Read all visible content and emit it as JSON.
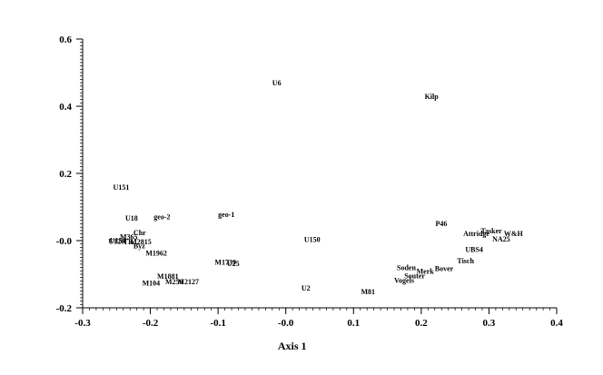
{
  "chart_data": {
    "type": "scatter",
    "title": "",
    "xlabel": "Axis 1",
    "ylabel": "",
    "xlim": [
      -0.3,
      0.4
    ],
    "ylim": [
      -0.2,
      0.6
    ],
    "x_ticks": [
      {
        "value": -0.3,
        "label": "-0.3"
      },
      {
        "value": -0.2,
        "label": "-0.2"
      },
      {
        "value": -0.1,
        "label": "-0.1"
      },
      {
        "value": 0.0,
        "label": "-0.0"
      },
      {
        "value": 0.1,
        "label": "0.1"
      },
      {
        "value": 0.2,
        "label": "0.2"
      },
      {
        "value": 0.3,
        "label": "0.3"
      },
      {
        "value": 0.4,
        "label": "0.4"
      }
    ],
    "y_ticks": [
      {
        "value": -0.2,
        "label": "-0.2"
      },
      {
        "value": 0.0,
        "label": "-0.0"
      },
      {
        "value": 0.2,
        "label": "0.2"
      },
      {
        "value": 0.4,
        "label": "0.4"
      },
      {
        "value": 0.6,
        "label": "0.6"
      }
    ],
    "points": [
      {
        "label": "U6",
        "x": -0.02,
        "y": 0.47
      },
      {
        "label": "Kilp",
        "x": 0.205,
        "y": 0.43
      },
      {
        "label": "U151",
        "x": -0.255,
        "y": 0.16
      },
      {
        "label": "U18",
        "x": -0.237,
        "y": 0.068
      },
      {
        "label": "geo-2",
        "x": -0.195,
        "y": 0.072
      },
      {
        "label": "geo-1",
        "x": -0.1,
        "y": 0.078
      },
      {
        "label": "Chr",
        "x": -0.225,
        "y": 0.024
      },
      {
        "label": "M365",
        "x": -0.245,
        "y": 0.012
      },
      {
        "label": "U154",
        "x": -0.26,
        "y": 0.001
      },
      {
        "label": "U120",
        "x": -0.262,
        "y": -0.002
      },
      {
        "label": "TR",
        "x": -0.24,
        "y": -0.003
      },
      {
        "label": "M2815",
        "x": -0.23,
        "y": -0.003
      },
      {
        "label": "Byz",
        "x": -0.225,
        "y": -0.015
      },
      {
        "label": "M1962",
        "x": -0.207,
        "y": -0.036
      },
      {
        "label": "U150",
        "x": 0.027,
        "y": 0.004
      },
      {
        "label": "P46",
        "x": 0.221,
        "y": 0.052
      },
      {
        "label": "Tasker",
        "x": 0.288,
        "y": 0.03
      },
      {
        "label": "Attridge",
        "x": 0.262,
        "y": 0.022
      },
      {
        "label": "W&H",
        "x": 0.322,
        "y": 0.022
      },
      {
        "label": "NA25",
        "x": 0.305,
        "y": 0.006
      },
      {
        "label": "UBS4",
        "x": 0.265,
        "y": -0.025
      },
      {
        "label": "Tisch",
        "x": 0.253,
        "y": -0.059
      },
      {
        "label": "M1739",
        "x": -0.105,
        "y": -0.064
      },
      {
        "label": "U25",
        "x": -0.087,
        "y": -0.067
      },
      {
        "label": "M1881",
        "x": -0.19,
        "y": -0.105
      },
      {
        "label": "M104",
        "x": -0.212,
        "y": -0.125
      },
      {
        "label": "M2127",
        "x": -0.16,
        "y": -0.121
      },
      {
        "label": "M256",
        "x": -0.178,
        "y": -0.121
      },
      {
        "label": "Bover",
        "x": 0.22,
        "y": -0.083
      },
      {
        "label": "Merk",
        "x": 0.193,
        "y": -0.09
      },
      {
        "label": "Soden",
        "x": 0.164,
        "y": -0.08
      },
      {
        "label": "Souter",
        "x": 0.175,
        "y": -0.104
      },
      {
        "label": "Vogels",
        "x": 0.16,
        "y": -0.118
      },
      {
        "label": "U2",
        "x": 0.023,
        "y": -0.14
      },
      {
        "label": "M81",
        "x": 0.111,
        "y": -0.152
      }
    ],
    "grid": false,
    "legend": "none"
  }
}
